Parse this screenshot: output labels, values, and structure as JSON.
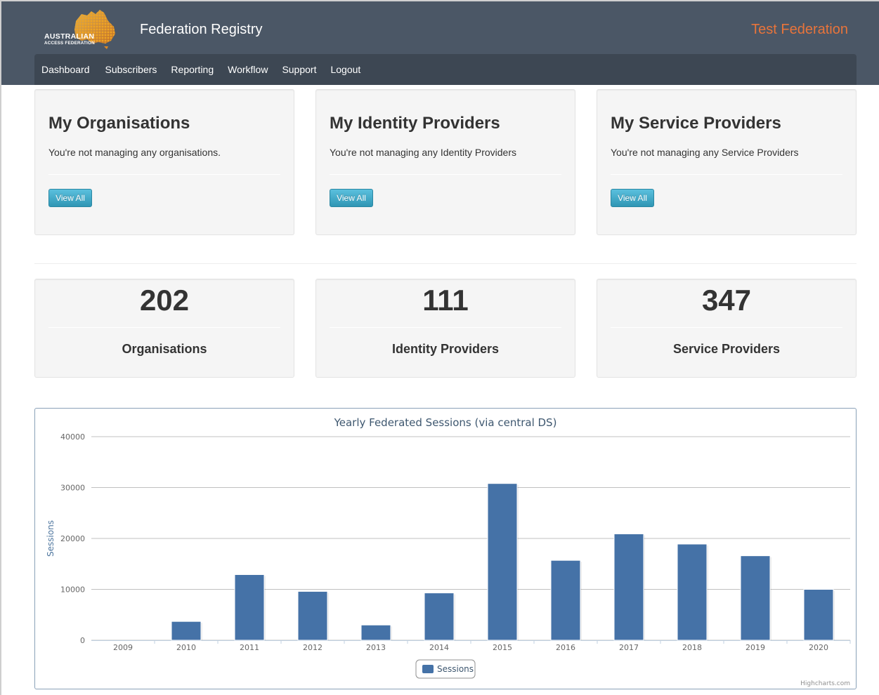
{
  "header": {
    "logo_line1": "AUSTRALIAN",
    "logo_line2": "ACCESS FEDERATION",
    "app_title": "Federation Registry",
    "federation_name": "Test Federation"
  },
  "nav": {
    "items": [
      "Dashboard",
      "Subscribers",
      "Reporting",
      "Workflow",
      "Support",
      "Logout"
    ]
  },
  "my_cards": [
    {
      "title": "My Organisations",
      "message": "You're not managing any organisations.",
      "button": "View All"
    },
    {
      "title": "My Identity Providers",
      "message": "You're not managing any Identity Providers",
      "button": "View All"
    },
    {
      "title": "My Service Providers",
      "message": "You're not managing any Service Providers",
      "button": "View All"
    }
  ],
  "stats": [
    {
      "value": "202",
      "label": "Organisations"
    },
    {
      "value": "111",
      "label": "Identity Providers"
    },
    {
      "value": "347",
      "label": "Service Providers"
    }
  ],
  "colors": {
    "header_bg": "#4b5766",
    "navbar_bg": "#3d4753",
    "federation_name": "#e8743b",
    "bar": "#4572a7",
    "button": "#49afcd"
  },
  "chart_data": {
    "type": "bar",
    "title": "Yearly Federated Sessions (via central DS)",
    "xlabel": "",
    "ylabel": "Sessions",
    "categories": [
      "2009",
      "2010",
      "2011",
      "2012",
      "2013",
      "2014",
      "2015",
      "2016",
      "2017",
      "2018",
      "2019",
      "2020"
    ],
    "series": [
      {
        "name": "Sessions",
        "values": [
          0,
          3700,
          12900,
          9600,
          3000,
          9300,
          30800,
          15700,
          20900,
          18900,
          16600,
          10000
        ]
      }
    ],
    "ylim": [
      0,
      40000
    ],
    "yticks": [
      0,
      10000,
      20000,
      30000,
      40000
    ],
    "grid": true,
    "legend": "bottom-center",
    "credits": "Highcharts.com"
  }
}
